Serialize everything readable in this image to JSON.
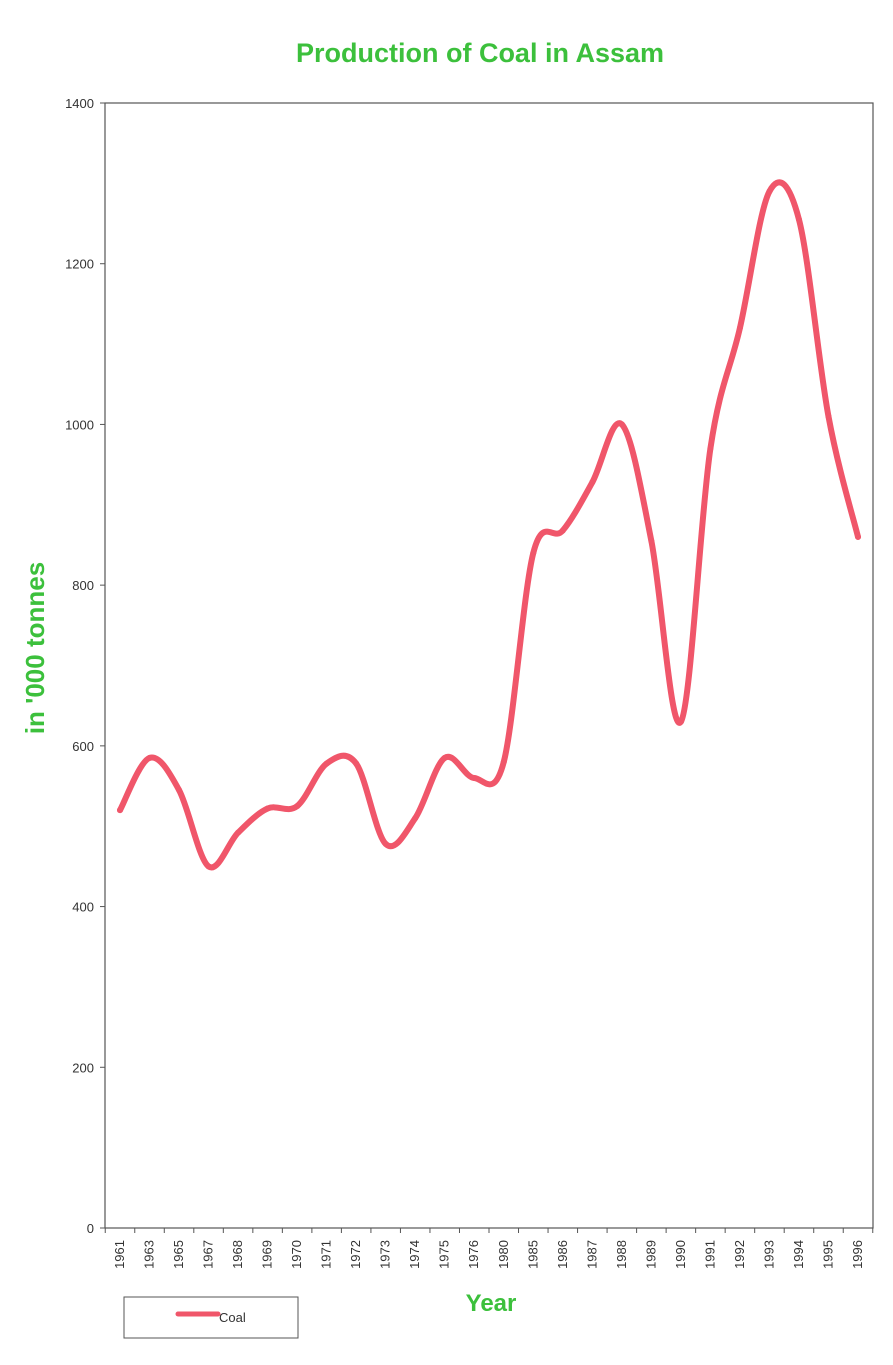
{
  "chart_data": {
    "type": "line",
    "title": "Production of Coal in Assam",
    "xlabel": "Year",
    "ylabel": "in '000 tonnes",
    "ylim": [
      0,
      1400
    ],
    "yticks": [
      0,
      200,
      400,
      600,
      800,
      1000,
      1200,
      1400
    ],
    "grid": false,
    "legend_position": "bottom-left",
    "categories": [
      "1961",
      "1963",
      "1965",
      "1967",
      "1968",
      "1969",
      "1970",
      "1971",
      "1972",
      "1973",
      "1974",
      "1975",
      "1976",
      "1980",
      "1985",
      "1986",
      "1987",
      "1988",
      "1989",
      "1990",
      "1991",
      "1992",
      "1993",
      "1994",
      "1995",
      "1996"
    ],
    "series": [
      {
        "name": "Coal",
        "color": "#f0566a",
        "values": [
          520,
          585,
          545,
          450,
          492,
          522,
          525,
          578,
          578,
          478,
          510,
          585,
          560,
          580,
          840,
          868,
          928,
          1000,
          855,
          630,
          970,
          1120,
          1290,
          1255,
          1010,
          860
        ]
      }
    ],
    "colors": {
      "title": "#3cc03c",
      "axis_label": "#3cc03c",
      "line": "#f0566a",
      "axis": "#555555",
      "tick_text": "#333333"
    }
  }
}
